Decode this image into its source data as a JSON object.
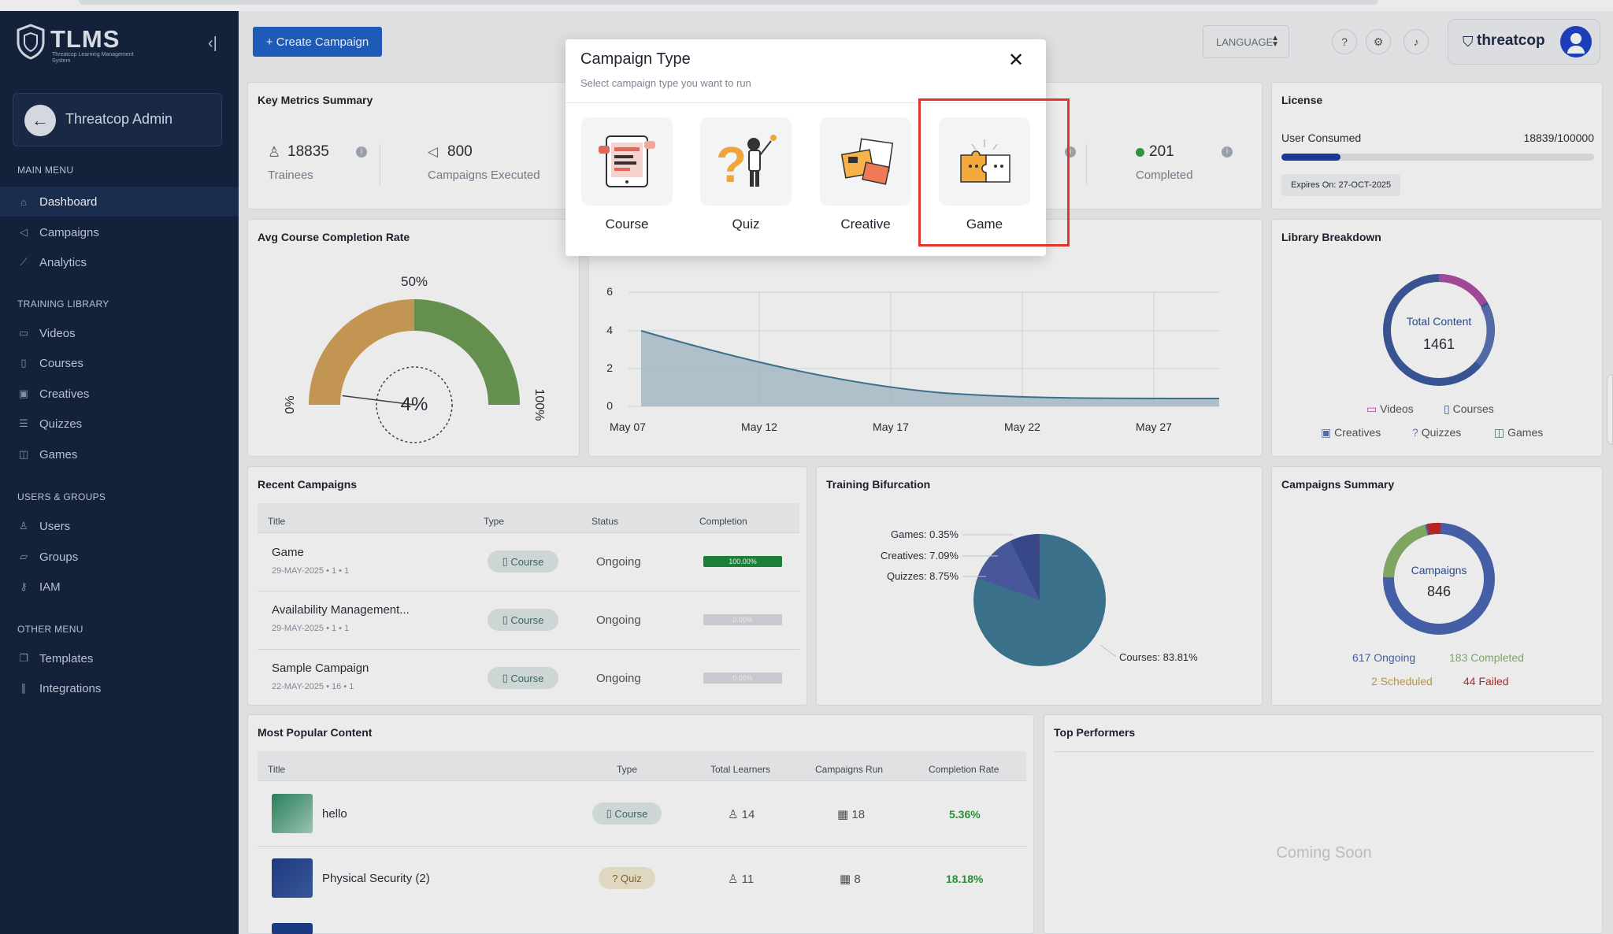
{
  "brand": {
    "title": "TLMS",
    "subtitle": "Threatcop Learning Management System",
    "company": "threatcop"
  },
  "admin": {
    "name": "Threatcop Admin"
  },
  "sidebar": {
    "main_menu_label": "MAIN MENU",
    "main_menu": [
      {
        "label": "Dashboard",
        "icon": "home-icon"
      },
      {
        "label": "Campaigns",
        "icon": "megaphone-icon"
      },
      {
        "label": "Analytics",
        "icon": "chart-line-icon"
      }
    ],
    "library_label": "TRAINING LIBRARY",
    "library": [
      {
        "label": "Videos",
        "icon": "video-icon"
      },
      {
        "label": "Courses",
        "icon": "book-icon"
      },
      {
        "label": "Creatives",
        "icon": "image-icon"
      },
      {
        "label": "Quizzes",
        "icon": "list-icon"
      },
      {
        "label": "Games",
        "icon": "gamepad-icon"
      }
    ],
    "users_label": "USERS & GROUPS",
    "users": [
      {
        "label": "Users",
        "icon": "user-icon"
      },
      {
        "label": "Groups",
        "icon": "folder-icon"
      },
      {
        "label": "IAM",
        "icon": "key-icon"
      }
    ],
    "other_label": "OTHER MENU",
    "other": [
      {
        "label": "Templates",
        "icon": "template-icon"
      },
      {
        "label": "Integrations",
        "icon": "link-icon"
      }
    ]
  },
  "header": {
    "create_label": "+ Create Campaign",
    "language_label": "LANGUAGE"
  },
  "metrics": {
    "title": "Key Metrics Summary",
    "trainees_value": "18835",
    "trainees_label": "Trainees",
    "campaigns_value": "800",
    "campaigns_label": "Campaigns Executed",
    "completed_value": "201",
    "completed_label": "Completed"
  },
  "license": {
    "title": "License",
    "consumed_label": "User Consumed",
    "consumed_value": "18839/100000",
    "consumed_fraction": 0.188,
    "expires": "Expires On: 27-OCT-2025"
  },
  "avg_completion": {
    "title": "Avg Course Completion Rate",
    "top_label": "50%",
    "left_label": "0%",
    "right_label": "100%",
    "value_label": "4%",
    "value": 4
  },
  "trend_chart": {
    "y_ticks": [
      "0",
      "2",
      "4",
      "6"
    ],
    "x_ticks": [
      "May 07",
      "May 12",
      "May 17",
      "May 22",
      "May 27"
    ]
  },
  "library_breakdown": {
    "title": "Library Breakdown",
    "center_label": "Total Content",
    "center_value": "1461",
    "legend": [
      "Videos",
      "Courses",
      "Creatives",
      "Quizzes",
      "Games"
    ]
  },
  "recent_campaigns": {
    "title": "Recent Campaigns",
    "headers": [
      "Title",
      "Type",
      "Status",
      "Completion"
    ],
    "rows": [
      {
        "title": "Game",
        "meta": "29-MAY-2025 • 1 • 1",
        "type": "Course",
        "status": "Ongoing",
        "completion": "100.00%"
      },
      {
        "title": "Availability Management...",
        "meta": "29-MAY-2025 • 1 • 1",
        "type": "Course",
        "status": "Ongoing",
        "completion": "0.00%"
      },
      {
        "title": "Sample Campaign",
        "meta": "22-MAY-2025 • 16 • 1",
        "type": "Course",
        "status": "Ongoing",
        "completion": "0.00%"
      }
    ]
  },
  "bifurcation": {
    "title": "Training Bifurcation",
    "labels": [
      "Games: 0.35%",
      "Creatives: 7.09%",
      "Quizzes: 8.75%",
      "Courses: 83.81%"
    ]
  },
  "campaigns_summary": {
    "title": "Campaigns Summary",
    "center_label": "Campaigns",
    "center_value": "846",
    "ongoing": "617 Ongoing",
    "completed": "183 Completed",
    "scheduled": "2 Scheduled",
    "failed": "44 Failed"
  },
  "popular": {
    "title": "Most Popular Content",
    "headers": [
      "Title",
      "Type",
      "Total Learners",
      "Campaigns Run",
      "Completion Rate"
    ],
    "rows": [
      {
        "title": "hello",
        "type": "Course",
        "learners": "14",
        "runs": "18",
        "rate": "5.36%"
      },
      {
        "title": "Physical Security (2)",
        "type": "Quiz",
        "learners": "11",
        "runs": "8",
        "rate": "18.18%"
      }
    ]
  },
  "top_performers": {
    "title": "Top Performers",
    "empty": "Coming Soon"
  },
  "modal": {
    "title": "Campaign Type",
    "subtitle": "Select campaign type you want to run",
    "options": [
      "Course",
      "Quiz",
      "Creative",
      "Game"
    ]
  },
  "colors": {
    "sidebar": "#152440",
    "primary": "#2163c8",
    "highlight": "#e0362c",
    "chart_fill": "#3f7a96"
  }
}
